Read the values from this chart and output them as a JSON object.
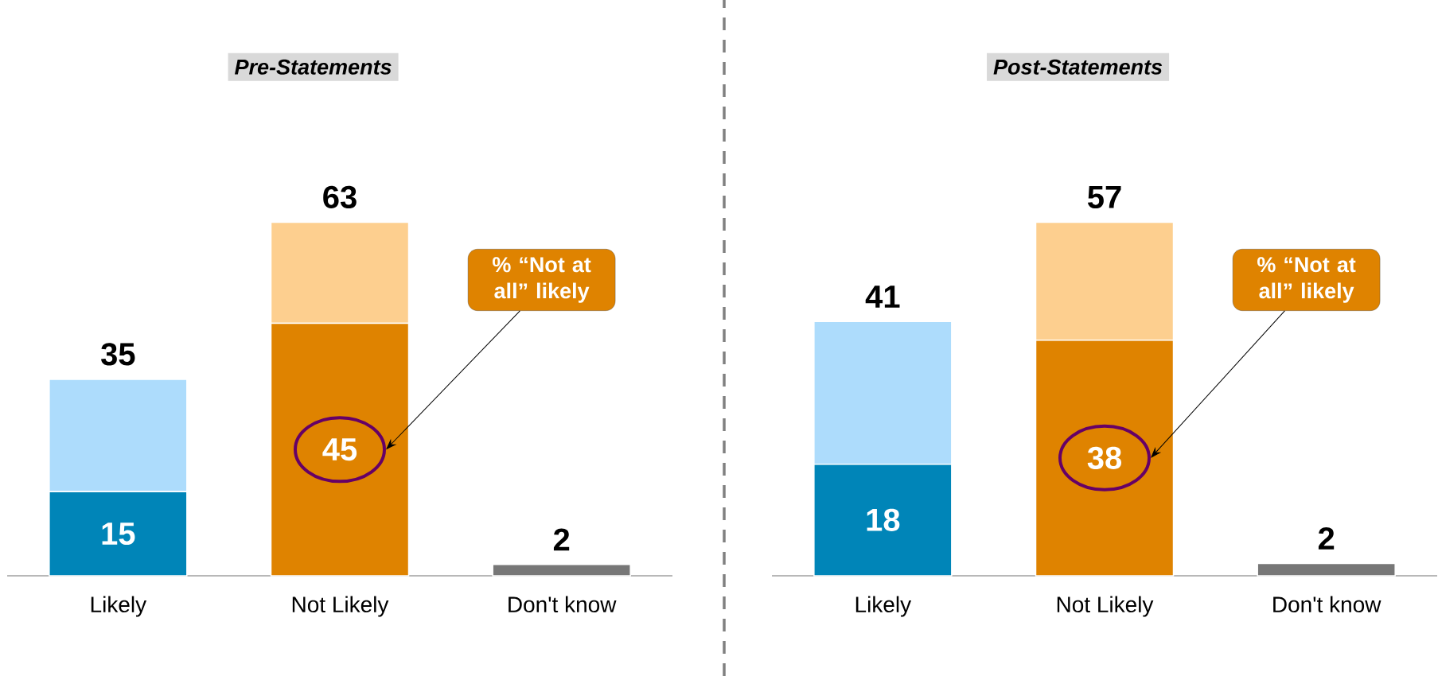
{
  "chart_data": [
    {
      "type": "bar",
      "title": "Pre-Statements",
      "stacked": true,
      "categories": [
        "Likely",
        "Not Likely",
        "Don't know"
      ],
      "series": [
        {
          "colors": [
            "#0085b8",
            "#df8300",
            "#777777"
          ],
          "values": [
            15,
            45,
            2
          ],
          "value_labels": [
            "15",
            "45",
            null
          ]
        },
        {
          "colors": [
            "#addcfc",
            "#fdcf8f",
            null
          ],
          "values": [
            20,
            18,
            null
          ]
        }
      ],
      "totals": [
        "35",
        "63",
        "2"
      ],
      "annotations": [
        "% “Not at all” likely"
      ]
    },
    {
      "type": "bar",
      "title": "Post-Statements",
      "stacked": true,
      "categories": [
        "Likely",
        "Not Likely",
        "Don't know"
      ],
      "series": [
        {
          "colors": [
            "#0085b8",
            "#df8300",
            "#777777"
          ],
          "values": [
            18,
            38,
            2
          ],
          "value_labels": [
            "18",
            "38",
            null
          ]
        },
        {
          "colors": [
            "#addcfc",
            "#fdcf8f",
            null
          ],
          "values": [
            23,
            19,
            null
          ]
        }
      ],
      "totals": [
        "41",
        "57",
        "2"
      ],
      "annotations": [
        "% “Not at all” likely"
      ]
    }
  ]
}
